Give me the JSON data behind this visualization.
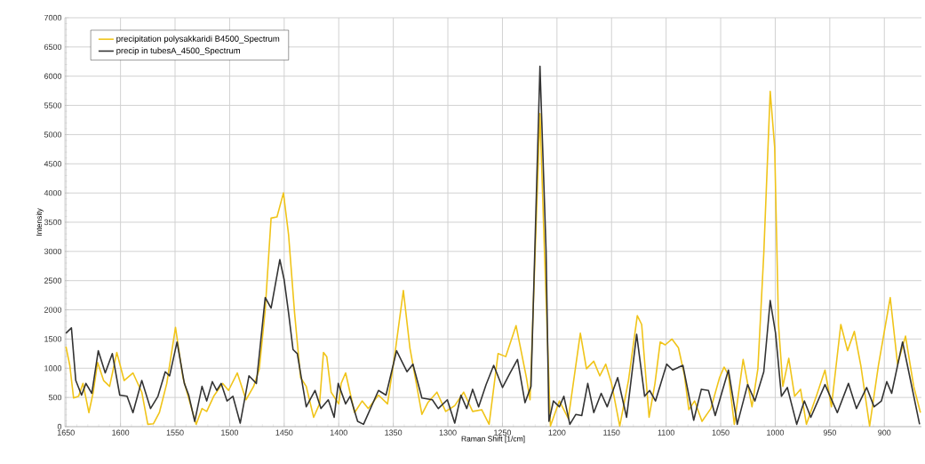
{
  "chart_data": {
    "type": "line",
    "xlabel": "Raman Shift [1/cm]",
    "ylabel": "Intensity",
    "xlim": [
      1651,
      866
    ],
    "ylim": [
      0,
      7000
    ],
    "xticks": [
      1650,
      1600,
      1550,
      1500,
      1450,
      1400,
      1350,
      1300,
      1250,
      1200,
      1150,
      1100,
      1050,
      1000,
      950,
      900
    ],
    "yticks": [
      0,
      500,
      1000,
      1500,
      2000,
      2500,
      3000,
      3500,
      4000,
      4500,
      5000,
      5500,
      6000,
      6500,
      7000
    ],
    "grid": true,
    "legend": "top left",
    "marker": "none",
    "line_style": "solid",
    "series": [
      {
        "name": "precipitation polysakkaridi B4500_Spectrum",
        "color": "#f0c419",
        "x": [
          1650,
          1646.5,
          1643,
          1638.4,
          1634.4,
          1629,
          1625,
          1621,
          1615.5,
          1610,
          1603.4,
          1596.7,
          1588.6,
          1580.5,
          1575,
          1569.8,
          1564.4,
          1557.6,
          1549.6,
          1542.8,
          1538.8,
          1530.7,
          1525.3,
          1521,
          1514.6,
          1506.5,
          1501,
          1493,
          1485,
          1478,
          1472.8,
          1467.4,
          1462,
          1456.6,
          1450.7,
          1446,
          1440.5,
          1435,
          1429.8,
          1423,
          1417.6,
          1414,
          1411,
          1407,
          1400,
          1397.8,
          1393.7,
          1385.5,
          1378.6,
          1373,
          1363.6,
          1355.3,
          1348.5,
          1340.8,
          1334.8,
          1323.8,
          1318.4,
          1310,
          1302,
          1293.7,
          1285.5,
          1277.3,
          1269,
          1262.2,
          1254,
          1247,
          1237.5,
          1228,
          1224.7,
          1215.6,
          1211.5,
          1206,
          1197.8,
          1189.6,
          1178.6,
          1173,
          1166.3,
          1160.8,
          1155.3,
          1150,
          1142.5,
          1134.5,
          1126.4,
          1122.4,
          1115.6,
          1110.2,
          1105.4,
          1100.8,
          1094.6,
          1088.7,
          1083.3,
          1079.2,
          1073.9,
          1067.1,
          1059,
          1051,
          1046.9,
          1042.9,
          1037.5,
          1029.4,
          1021.3,
          1015.9,
          1010.5,
          1004.6,
          1000.5,
          997,
          993,
          987.6,
          982.2,
          976.8,
          971.4,
          962,
          954.4,
          948.5,
          939.9,
          933.7,
          927.5,
          921.6,
          913.5,
          905.4,
          894.6,
          887.9,
          880.6,
          873.1,
          866.9
        ],
        "values": [
          1370,
          1050,
          490,
          520,
          740,
          240,
          590,
          1100,
          790,
          690,
          1270,
          790,
          920,
          590,
          40,
          50,
          240,
          740,
          1700,
          840,
          570,
          40,
          310,
          260,
          520,
          740,
          620,
          920,
          460,
          690,
          990,
          2000,
          3570,
          3590,
          4000,
          3290,
          1950,
          840,
          690,
          160,
          390,
          1270,
          1200,
          590,
          390,
          740,
          920,
          240,
          440,
          310,
          540,
          390,
          1250,
          2330,
          1350,
          210,
          410,
          590,
          260,
          360,
          590,
          260,
          290,
          40,
          1250,
          1200,
          1730,
          840,
          460,
          5360,
          3010,
          10,
          440,
          140,
          1600,
          990,
          1120,
          870,
          1070,
          740,
          10,
          790,
          1900,
          1750,
          160,
          740,
          1450,
          1400,
          1500,
          1350,
          890,
          290,
          440,
          90,
          310,
          840,
          1020,
          890,
          40,
          1150,
          340,
          990,
          2960,
          5740,
          4780,
          1750,
          690,
          1170,
          520,
          640,
          40,
          540,
          970,
          340,
          1750,
          1300,
          1630,
          1050,
          10,
          1050,
          2210,
          1070,
          1550,
          690,
          240
        ]
      },
      {
        "name": "precip in tubesA_4500_Spectrum",
        "color": "#333333",
        "x": [
          1650,
          1645,
          1641,
          1635.7,
          1631.7,
          1626.3,
          1620.4,
          1614,
          1607.5,
          1600.7,
          1594,
          1588.6,
          1580.5,
          1572.5,
          1565.7,
          1559,
          1555,
          1548.2,
          1541.5,
          1537.5,
          1532,
          1525.3,
          1521,
          1515.9,
          1511.8,
          1507.8,
          1502.4,
          1497,
          1490.3,
          1482.3,
          1475.5,
          1467.4,
          1462,
          1454,
          1450,
          1446,
          1441.9,
          1438,
          1429.8,
          1421.7,
          1416.3,
          1409.6,
          1404.2,
          1400.5,
          1393.7,
          1389.6,
          1382.7,
          1377.3,
          1363.6,
          1356.7,
          1347,
          1337.5,
          1332,
          1323.8,
          1314.2,
          1308.8,
          1300.5,
          1293.7,
          1288,
          1282.7,
          1277.3,
          1271.8,
          1265,
          1258,
          1249.9,
          1243,
          1236.2,
          1229.3,
          1223.8,
          1215.6,
          1210,
          1207.4,
          1203.3,
          1197.8,
          1193.7,
          1188.2,
          1182.7,
          1177.3,
          1171.8,
          1166.3,
          1159.5,
          1154,
          1144.4,
          1136.2,
          1127,
          1119.7,
          1115.1,
          1109.7,
          1099.5,
          1094,
          1084.6,
          1074.7,
          1067.7,
          1061.2,
          1055,
          1042.9,
          1034.8,
          1025.3,
          1018.6,
          1010.5,
          1004.6,
          999.7,
          994.3,
          988.9,
          980.3,
          973.3,
          967.4,
          954.4,
          943.1,
          932.9,
          925.6,
          916.2,
          909.4,
          902.7,
          897.8,
          893.3,
          883.3,
          877.1,
          867.7
        ],
        "values": [
          1600,
          1690,
          790,
          540,
          740,
          570,
          1300,
          920,
          1250,
          540,
          520,
          240,
          790,
          310,
          520,
          940,
          870,
          1450,
          740,
          540,
          90,
          690,
          440,
          770,
          620,
          740,
          440,
          520,
          60,
          870,
          740,
          2210,
          2030,
          2860,
          2510,
          1950,
          1320,
          1250,
          340,
          620,
          310,
          460,
          160,
          740,
          390,
          520,
          90,
          40,
          620,
          540,
          1300,
          940,
          1070,
          490,
          460,
          310,
          460,
          60,
          540,
          310,
          640,
          340,
          720,
          1050,
          670,
          920,
          1150,
          410,
          690,
          6170,
          3010,
          90,
          440,
          340,
          520,
          40,
          210,
          190,
          740,
          240,
          570,
          340,
          840,
          160,
          1580,
          520,
          620,
          440,
          1070,
          970,
          1050,
          110,
          640,
          620,
          190,
          970,
          40,
          720,
          440,
          940,
          2160,
          1600,
          520,
          670,
          40,
          440,
          160,
          720,
          240,
          740,
          310,
          670,
          340,
          440,
          770,
          570,
          1450,
          890,
          40
        ]
      }
    ]
  }
}
